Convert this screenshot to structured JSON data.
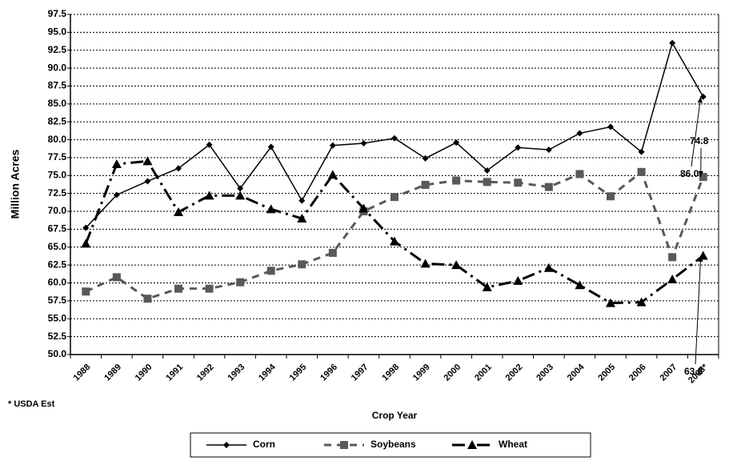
{
  "chart_data": {
    "type": "line",
    "y_label": "Million Acres",
    "x_label": "Crop Year",
    "note": "* USDA Est",
    "categories": [
      "1988",
      "1989",
      "1990",
      "1991",
      "1992",
      "1993",
      "1994",
      "1995",
      "1996",
      "1997",
      "1998",
      "1999",
      "2000",
      "2001",
      "2002",
      "2003",
      "2004",
      "2005",
      "2006",
      "2007",
      "2008*"
    ],
    "series": [
      {
        "name": "Corn",
        "color": "#000000",
        "values": [
          67.7,
          72.3,
          74.2,
          76.0,
          79.3,
          73.2,
          79.0,
          71.5,
          79.2,
          79.5,
          80.2,
          77.4,
          79.6,
          75.7,
          78.9,
          78.6,
          80.9,
          81.8,
          78.3,
          93.5,
          86.0
        ]
      },
      {
        "name": "Soybeans",
        "color": "#595959",
        "values": [
          58.8,
          60.8,
          57.8,
          59.2,
          59.2,
          60.1,
          61.7,
          62.6,
          64.2,
          70.0,
          72.0,
          73.7,
          74.3,
          74.1,
          74.0,
          73.4,
          75.2,
          72.1,
          75.5,
          63.6,
          74.8
        ]
      },
      {
        "name": "Wheat",
        "color": "#000000",
        "values": [
          65.5,
          76.6,
          77.0,
          69.9,
          72.2,
          72.2,
          70.3,
          69.0,
          75.1,
          70.4,
          65.8,
          62.7,
          62.5,
          59.4,
          60.3,
          62.1,
          59.7,
          57.2,
          57.3,
          60.5,
          63.8
        ]
      }
    ],
    "annotations": [
      "86.0",
      "74.8",
      "63.8"
    ],
    "ylim": [
      50,
      97.5
    ],
    "yticks": [
      {
        "value": 50,
        "label": "50.0"
      },
      52.5,
      {
        "value": 55,
        "label": "55.0"
      },
      57.5,
      {
        "value": 60,
        "label": "60.0"
      },
      62.5,
      {
        "value": 65,
        "label": "65.0"
      },
      67.5,
      {
        "value": 70,
        "label": "70.0"
      },
      72.5,
      {
        "value": 75,
        "label": "75.0"
      },
      77.5,
      {
        "value": 80,
        "label": "80.0"
      },
      82.5,
      {
        "value": 85,
        "label": "85.0"
      },
      87.5,
      {
        "value": 90,
        "label": "90.0"
      },
      92.5,
      {
        "value": 95,
        "label": "95.0"
      },
      97.5
    ],
    "grid": true
  }
}
